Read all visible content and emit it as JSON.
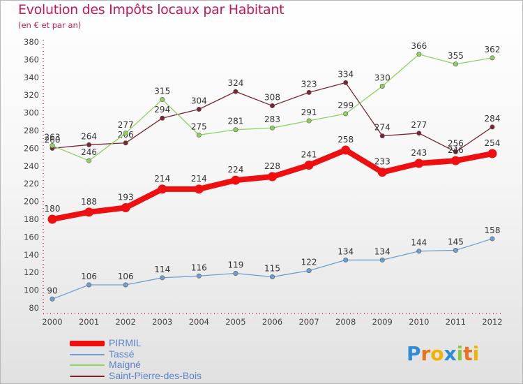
{
  "title": "Evolution des Impôts locaux par Habitant",
  "subtitle": "(en € et par an)",
  "logo": {
    "text": "Proxiti",
    "letters": [
      "P",
      "r",
      "o",
      "x",
      "i",
      "t",
      "i"
    ],
    "colors": [
      "#2e8bd6",
      "#e8731c",
      "#f2b200",
      "#2e8bd6",
      "#8cc63f",
      "#e8731c",
      "#f2b200"
    ]
  },
  "chart_data": {
    "type": "line",
    "x": [
      "2000",
      "2001",
      "2002",
      "2003",
      "2004",
      "2005",
      "2006",
      "2007",
      "2008",
      "2009",
      "2010",
      "2011",
      "2012"
    ],
    "ylim": [
      80,
      380
    ],
    "yticks": [
      "80",
      "100",
      "120",
      "140",
      "160",
      "180",
      "200",
      "220",
      "240",
      "260",
      "280",
      "300",
      "320",
      "340",
      "360",
      "380"
    ],
    "grid": false,
    "legend_position": "bottom-left",
    "series": [
      {
        "name": "Saint-Pierre-des-Bois",
        "color": "#7a2630",
        "style": "thin",
        "values": [
          260,
          264,
          266,
          294,
          304,
          324,
          308,
          323,
          334,
          274,
          277,
          256,
          284
        ],
        "labels": [
          "260",
          "264",
          "266",
          "294",
          "304",
          "324",
          "308",
          "323",
          "334",
          "274",
          "277",
          "256",
          "284"
        ]
      },
      {
        "name": "Maigné",
        "color": "#8fd160",
        "style": "thin",
        "values": [
          263,
          246,
          277,
          315,
          275,
          281,
          283,
          291,
          299,
          330,
          366,
          355,
          362
        ],
        "labels": [
          "263",
          "246",
          "277",
          "315",
          "275",
          "281",
          "283",
          "291",
          "299",
          "330",
          "366",
          "355",
          "362"
        ]
      },
      {
        "name": "Tassé",
        "color": "#6f9fcf",
        "style": "thin",
        "values": [
          90,
          106,
          106,
          114,
          116,
          119,
          115,
          122,
          134,
          134,
          144,
          145,
          158
        ],
        "labels": [
          "90",
          "106",
          "106",
          "114",
          "116",
          "119",
          "115",
          "122",
          "134",
          "134",
          "144",
          "145",
          "158"
        ]
      },
      {
        "name": "PIRMIL",
        "color": "#ee1010",
        "style": "thick",
        "values": [
          180,
          188,
          193,
          214,
          214,
          224,
          228,
          241,
          258,
          233,
          243,
          246,
          254
        ],
        "labels": [
          "180",
          "188",
          "193",
          "214",
          "214",
          "224",
          "228",
          "241",
          "258",
          "233",
          "243",
          "246",
          "254"
        ]
      }
    ],
    "legend": [
      "PIRMIL",
      "Tassé",
      "Maigné",
      "Saint-Pierre-des-Bois"
    ]
  }
}
